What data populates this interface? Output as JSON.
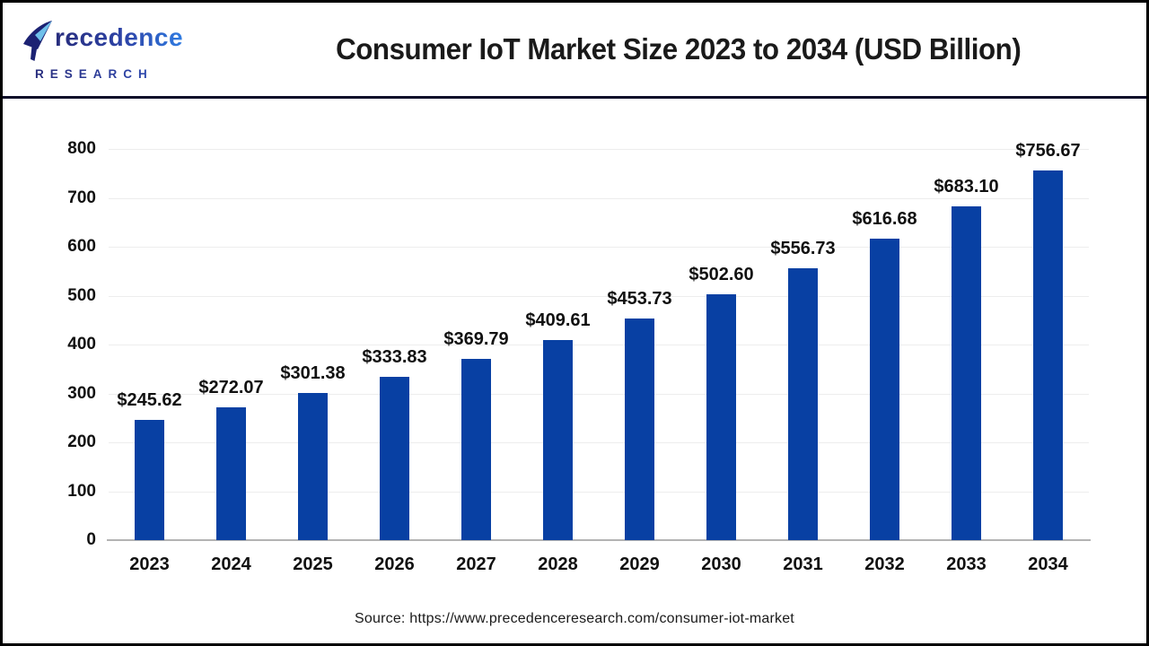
{
  "header": {
    "logo": {
      "wordmark": "Precedence",
      "wordmark_rest": "recedence",
      "subtext": "RESEARCH"
    },
    "title": "Consumer IoT Market Size 2023 to 2034 (USD Billion)"
  },
  "chart_data": {
    "type": "bar",
    "title": "Consumer IoT Market Size 2023 to 2034 (USD Billion)",
    "categories": [
      "2023",
      "2024",
      "2025",
      "2026",
      "2027",
      "2028",
      "2029",
      "2030",
      "2031",
      "2032",
      "2033",
      "2034"
    ],
    "values": [
      245.62,
      272.07,
      301.38,
      333.83,
      369.79,
      409.61,
      453.73,
      502.6,
      556.73,
      616.68,
      683.1,
      756.67
    ],
    "value_labels": [
      "$245.62",
      "$272.07",
      "$301.38",
      "$333.83",
      "$369.79",
      "$409.61",
      "$453.73",
      "$502.60",
      "$556.73",
      "$616.68",
      "$683.10",
      "$756.67"
    ],
    "xlabel": "",
    "ylabel": "",
    "ylim": [
      0,
      800
    ],
    "yticks": [
      0,
      100,
      200,
      300,
      400,
      500,
      600,
      700,
      800
    ],
    "grid": true,
    "legend": "none",
    "bar_color": "#0840a3"
  },
  "colors": {
    "bar": "#0840a3",
    "divider_navy": "#0e0e2a",
    "logo_gradient_start": "#272c7c",
    "logo_gradient_end": "#2f7ce2",
    "gridline": "#ededed",
    "axis_line": "#b3b3b3",
    "page_border": "#000000"
  },
  "footer": {
    "source": "Source: https://www.precedenceresearch.com/consumer-iot-market"
  }
}
